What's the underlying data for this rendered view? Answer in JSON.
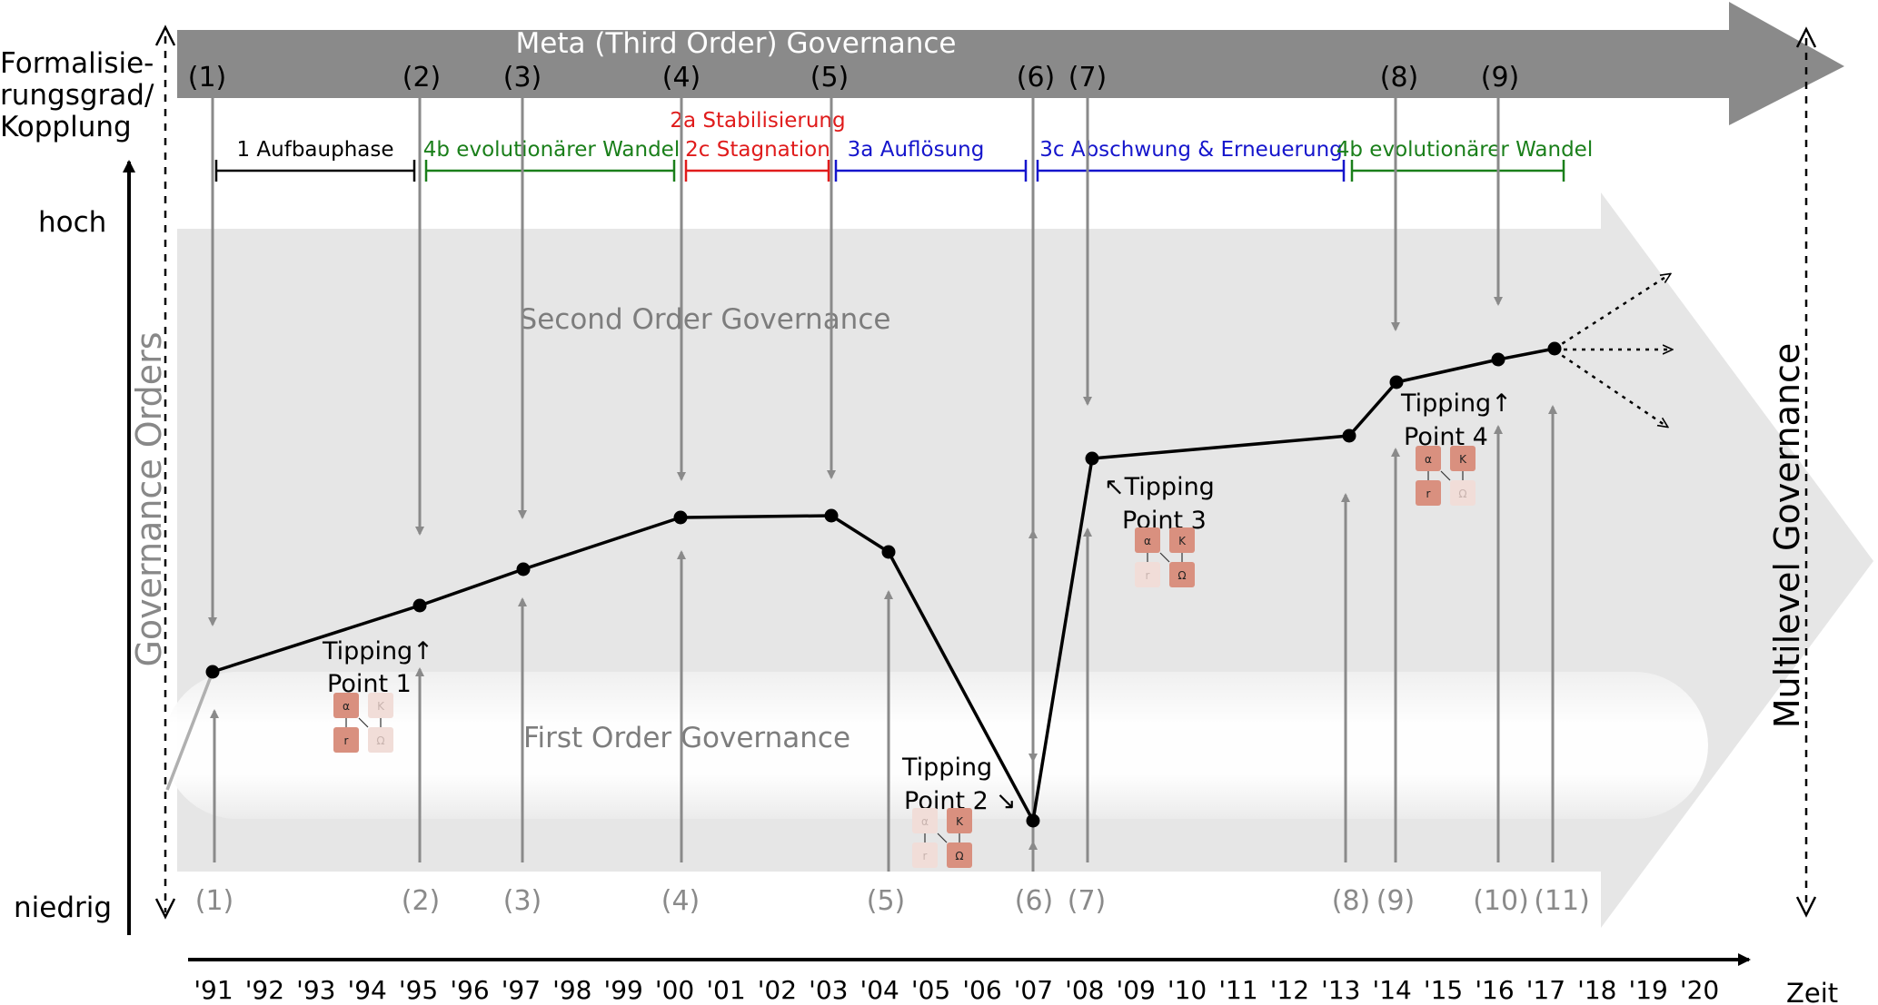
{
  "y_axis": {
    "label_line1": "Formalisie-",
    "label_line2": "rungsgrad/",
    "label_line3": "Kopplung",
    "high": "hoch",
    "low": "niedrig"
  },
  "x_axis": {
    "label": "Zeit",
    "ticks": [
      "'91",
      "'92",
      "'93",
      "'94",
      "'95",
      "'96",
      "'97",
      "'98",
      "'99",
      "'00",
      "'01",
      "'02",
      "'03",
      "'04",
      "'05",
      "'06",
      "'07",
      "'08",
      "'09",
      "'10",
      "'11",
      "'12",
      "'13",
      "'14",
      "'15",
      "'16",
      "'17",
      "'18",
      "'19",
      "'20"
    ]
  },
  "bands": {
    "meta": "Meta (Third Order) Governance",
    "second": "Second Order Governance",
    "first": "First Order Governance",
    "orders": "Governance Orders",
    "multilevel": "Multilevel Governance"
  },
  "top_markers": [
    "(1)",
    "(2)",
    "(3)",
    "(4)",
    "(5)",
    "(6)",
    "(7)",
    "(8)",
    "(9)"
  ],
  "bottom_markers": [
    "(1)",
    "(2)",
    "(3)",
    "(4)",
    "(5)",
    "(6)",
    "(7)",
    "(8)",
    "(9)",
    "(10)",
    "(11)"
  ],
  "phases": [
    {
      "label": "1 Aufbauphase",
      "color": "#000000"
    },
    {
      "label": "4b evolutionärer Wandel",
      "color": "#1a7f1a"
    },
    {
      "label": "2a Stabilisierung",
      "color": "#e01b1b"
    },
    {
      "label": "2c Stagnation",
      "color": "#e01b1b"
    },
    {
      "label": "3a Auflösung",
      "color": "#1515cc"
    },
    {
      "label": "3c Abschwung & Erneuerung",
      "color": "#1515cc"
    },
    {
      "label": "4b evolutionärer Wandel",
      "color": "#1a7f1a"
    }
  ],
  "tipping_points": [
    {
      "line1": "Tipping",
      "arrow1": "↑",
      "line2": "Point 1"
    },
    {
      "line1": "Tipping",
      "line2": "Point 2",
      "arrow2": "↘"
    },
    {
      "arrow1": "↖",
      "line1": "Tipping",
      "line2": "Point 3"
    },
    {
      "line1": "Tipping",
      "arrow1": "↑",
      "line2": "Point 4"
    }
  ],
  "glyphs": {
    "a": "α",
    "k": "K",
    "r": "r",
    "o": "Ω"
  },
  "colors": {
    "meta_band": "#8a8a8a",
    "second_band": "#e8e8e8",
    "first_band": "#fafafa",
    "arrow_grey": "#8a8a8a",
    "curve": "#000000",
    "box_strong": "#d9907f",
    "box_faint": "#f1ddd8"
  }
}
